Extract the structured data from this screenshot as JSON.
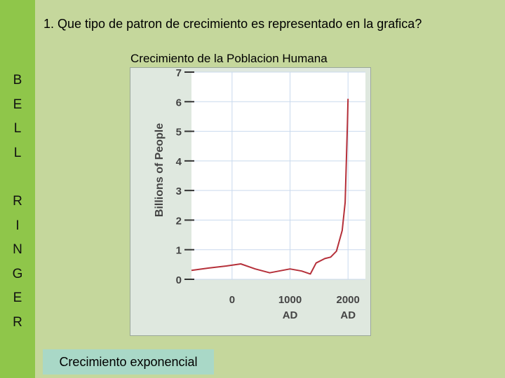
{
  "question": "1.  Que tipo de patron de crecimiento es representado en la grafica?",
  "sidebar": {
    "letters": [
      "B",
      "E",
      "L",
      "L",
      "",
      "R",
      "I",
      "N",
      "G",
      "E",
      "R"
    ]
  },
  "answer": "Crecimiento exponencial",
  "colors": {
    "background": "#c5d79c",
    "sidebar": "#8fc64a",
    "chart_panel": "#dfe8df",
    "plot_area": "#ffffff",
    "grid": "#c9d9ee",
    "series": "#b5303a",
    "answer_box": "#a9d8c7"
  },
  "chart_data": {
    "type": "line",
    "title": "Crecimiento de la Poblacion Humana",
    "ylabel": "Billions of People",
    "xlabel": "",
    "ylim": [
      0,
      7
    ],
    "xlim": [
      -700,
      2300
    ],
    "yticks": [
      0,
      1,
      2,
      3,
      4,
      5,
      6,
      7
    ],
    "xticks": [
      {
        "value": 0,
        "label": "0",
        "sublabel": ""
      },
      {
        "value": 1000,
        "label": "1000",
        "sublabel": "AD"
      },
      {
        "value": 2000,
        "label": "2000",
        "sublabel": "AD"
      }
    ],
    "grid": true,
    "series": [
      {
        "name": "",
        "x": [
          -700,
          -400,
          -100,
          150,
          400,
          650,
          1000,
          1200,
          1350,
          1450,
          1600,
          1700,
          1800,
          1850,
          1900,
          1950,
          1990,
          2000
        ],
        "y": [
          0.3,
          0.38,
          0.45,
          0.52,
          0.35,
          0.22,
          0.35,
          0.28,
          0.18,
          0.55,
          0.7,
          0.75,
          0.95,
          1.3,
          1.65,
          2.6,
          5.3,
          6.1
        ]
      }
    ]
  }
}
